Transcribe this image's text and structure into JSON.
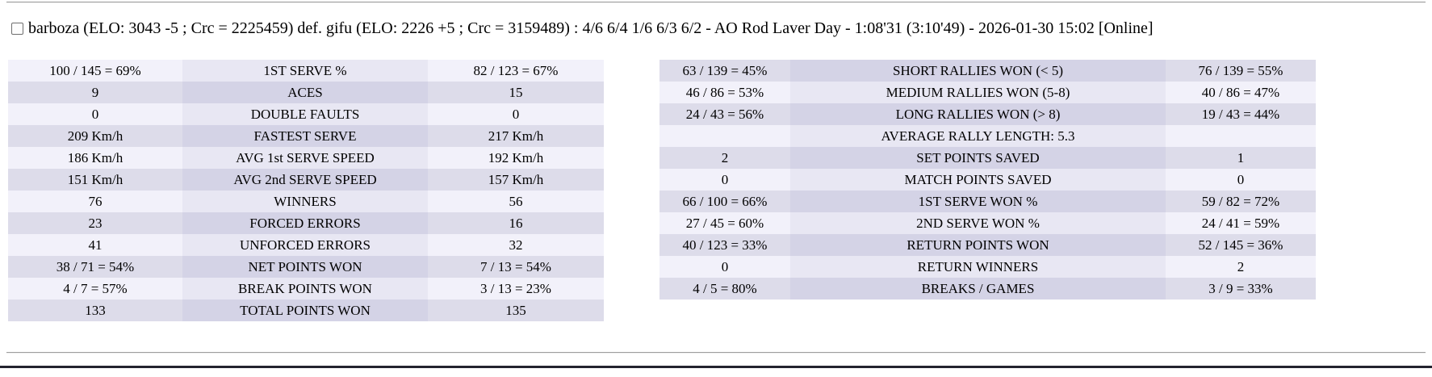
{
  "header": {
    "match_summary": "barboza (ELO: 3043 -5 ; Crc = 2225459) def. gifu (ELO: 2226 +5 ; Crc = 3159489) : 4/6 6/4 1/6 6/3 6/2 - AO Rod Laver Day - 1:08'31 (3:10'49) - 2026-01-30 15:02 [Online]",
    "checkbox_checked": false
  },
  "colors": {
    "page_bg": "#ffffff",
    "row_light_value": "#f2f1fa",
    "row_light_label": "#e8e7f3",
    "row_dark_value": "#dddcea",
    "row_dark_label": "#d4d3e6",
    "footer_bar": "#23232f",
    "text": "#000000"
  },
  "stats_left": {
    "first_row_shade": "light",
    "rows": [
      {
        "p1": "100 / 145 = 69%",
        "label": "1ST SERVE %",
        "p2": "82 / 123 = 67%"
      },
      {
        "p1": "9",
        "label": "ACES",
        "p2": "15"
      },
      {
        "p1": "0",
        "label": "DOUBLE FAULTS",
        "p2": "0"
      },
      {
        "p1": "209 Km/h",
        "label": "FASTEST SERVE",
        "p2": "217 Km/h"
      },
      {
        "p1": "186 Km/h",
        "label": "AVG 1st SERVE SPEED",
        "p2": "192 Km/h"
      },
      {
        "p1": "151 Km/h",
        "label": "AVG 2nd SERVE SPEED",
        "p2": "157 Km/h"
      },
      {
        "p1": "76",
        "label": "WINNERS",
        "p2": "56"
      },
      {
        "p1": "23",
        "label": "FORCED ERRORS",
        "p2": "16"
      },
      {
        "p1": "41",
        "label": "UNFORCED ERRORS",
        "p2": "32"
      },
      {
        "p1": "38 / 71 = 54%",
        "label": "NET POINTS WON",
        "p2": "7 / 13 = 54%"
      },
      {
        "p1": "4 / 7 = 57%",
        "label": "BREAK POINTS WON",
        "p2": "3 / 13 = 23%"
      },
      {
        "p1": "133",
        "label": "TOTAL POINTS WON",
        "p2": "135"
      }
    ]
  },
  "stats_right": {
    "first_row_shade": "dark",
    "rows": [
      {
        "p1": "63 / 139 = 45%",
        "label": "SHORT RALLIES WON (< 5)",
        "p2": "76 / 139 = 55%"
      },
      {
        "p1": "46 / 86 = 53%",
        "label": "MEDIUM RALLIES WON (5-8)",
        "p2": "40 / 86 = 47%"
      },
      {
        "p1": "24 / 43 = 56%",
        "label": "LONG RALLIES WON (> 8)",
        "p2": "19 / 43 = 44%"
      },
      {
        "p1": "",
        "label": "AVERAGE RALLY LENGTH: 5.3",
        "p2": ""
      },
      {
        "p1": "2",
        "label": "SET POINTS SAVED",
        "p2": "1"
      },
      {
        "p1": "0",
        "label": "MATCH POINTS SAVED",
        "p2": "0"
      },
      {
        "p1": "66 / 100 = 66%",
        "label": "1ST SERVE WON %",
        "p2": "59 / 82 = 72%"
      },
      {
        "p1": "27 / 45 = 60%",
        "label": "2ND SERVE WON %",
        "p2": "24 / 41 = 59%"
      },
      {
        "p1": "40 / 123 = 33%",
        "label": "RETURN POINTS WON",
        "p2": "52 / 145 = 36%"
      },
      {
        "p1": "0",
        "label": "RETURN WINNERS",
        "p2": "2"
      },
      {
        "p1": "4 / 5 = 80%",
        "label": "BREAKS / GAMES",
        "p2": "3 / 9 = 33%"
      }
    ]
  }
}
